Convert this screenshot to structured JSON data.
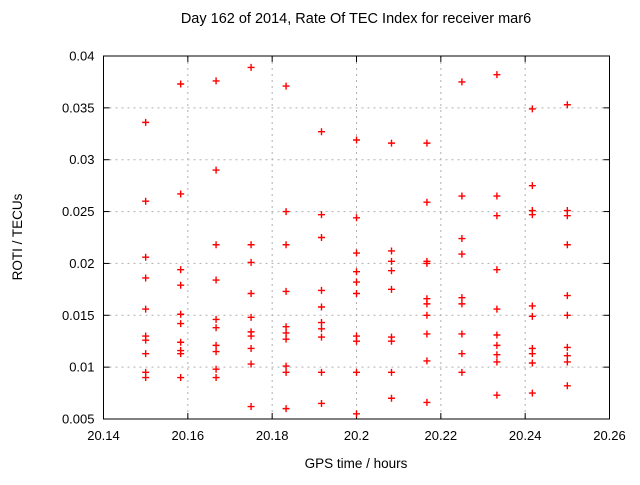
{
  "chart_data": {
    "type": "scatter",
    "title": "Day 162 of 2014, Rate Of TEC Index for receiver mar6",
    "xlabel": "GPS time / hours",
    "ylabel": "ROTI / TECUs",
    "xlim": [
      20.14,
      20.26
    ],
    "ylim": [
      0.005,
      0.04
    ],
    "grid": true,
    "legend_position": "none",
    "background": "#ffffff",
    "frame_color": "#000000",
    "grid_color": "#b0b0b0",
    "xticks": {
      "values": [
        20.14,
        20.16,
        20.18,
        20.2,
        20.22,
        20.24,
        20.26
      ],
      "labels": [
        "20.14",
        "20.16",
        "20.18",
        "20.2",
        "20.22",
        "20.24",
        "20.26"
      ]
    },
    "yticks": {
      "values": [
        0.005,
        0.01,
        0.015,
        0.02,
        0.025,
        0.03,
        0.035,
        0.04
      ],
      "labels": [
        "0.005",
        "0.01",
        "0.015",
        "0.02",
        "0.025",
        "0.03",
        "0.035",
        "0.04"
      ]
    },
    "marker": {
      "symbol": "plus",
      "color": "#ff0000",
      "size": 7
    },
    "series": [
      {
        "name": "ROTI",
        "points": [
          [
            20.15,
            0.0336
          ],
          [
            20.15,
            0.026
          ],
          [
            20.15,
            0.0206
          ],
          [
            20.15,
            0.0186
          ],
          [
            20.15,
            0.0156
          ],
          [
            20.15,
            0.013
          ],
          [
            20.15,
            0.0126
          ],
          [
            20.15,
            0.0113
          ],
          [
            20.15,
            0.0095
          ],
          [
            20.15,
            0.009
          ],
          [
            20.1583,
            0.0373
          ],
          [
            20.1583,
            0.0267
          ],
          [
            20.1583,
            0.0194
          ],
          [
            20.1583,
            0.0179
          ],
          [
            20.1583,
            0.0151
          ],
          [
            20.1583,
            0.0142
          ],
          [
            20.1583,
            0.0124
          ],
          [
            20.1583,
            0.0116
          ],
          [
            20.1583,
            0.0113
          ],
          [
            20.1583,
            0.009
          ],
          [
            20.1667,
            0.0376
          ],
          [
            20.1667,
            0.029
          ],
          [
            20.1667,
            0.0218
          ],
          [
            20.1667,
            0.0184
          ],
          [
            20.1667,
            0.0146
          ],
          [
            20.1667,
            0.0138
          ],
          [
            20.1667,
            0.0121
          ],
          [
            20.1667,
            0.0115
          ],
          [
            20.1667,
            0.0098
          ],
          [
            20.1667,
            0.009
          ],
          [
            20.175,
            0.0389
          ],
          [
            20.175,
            0.0218
          ],
          [
            20.175,
            0.0201
          ],
          [
            20.175,
            0.0171
          ],
          [
            20.175,
            0.0148
          ],
          [
            20.175,
            0.0134
          ],
          [
            20.175,
            0.013
          ],
          [
            20.175,
            0.0118
          ],
          [
            20.175,
            0.0103
          ],
          [
            20.175,
            0.0062
          ],
          [
            20.1833,
            0.0371
          ],
          [
            20.1833,
            0.025
          ],
          [
            20.1833,
            0.0218
          ],
          [
            20.1833,
            0.0173
          ],
          [
            20.1833,
            0.0139
          ],
          [
            20.1833,
            0.0133
          ],
          [
            20.1833,
            0.0127
          ],
          [
            20.1833,
            0.0101
          ],
          [
            20.1833,
            0.0095
          ],
          [
            20.1833,
            0.006
          ],
          [
            20.1917,
            0.0327
          ],
          [
            20.1917,
            0.0247
          ],
          [
            20.1917,
            0.0225
          ],
          [
            20.1917,
            0.0174
          ],
          [
            20.1917,
            0.0158
          ],
          [
            20.1917,
            0.0143
          ],
          [
            20.1917,
            0.0137
          ],
          [
            20.1917,
            0.0129
          ],
          [
            20.1917,
            0.0095
          ],
          [
            20.1917,
            0.0065
          ],
          [
            20.2,
            0.0319
          ],
          [
            20.2,
            0.0244
          ],
          [
            20.2,
            0.021
          ],
          [
            20.2,
            0.0192
          ],
          [
            20.2,
            0.0182
          ],
          [
            20.2,
            0.0171
          ],
          [
            20.2,
            0.013
          ],
          [
            20.2,
            0.0125
          ],
          [
            20.2,
            0.0095
          ],
          [
            20.2,
            0.0055
          ],
          [
            20.2083,
            0.0316
          ],
          [
            20.2083,
            0.0212
          ],
          [
            20.2083,
            0.0202
          ],
          [
            20.2083,
            0.0193
          ],
          [
            20.2083,
            0.0175
          ],
          [
            20.2083,
            0.0129
          ],
          [
            20.2083,
            0.0125
          ],
          [
            20.2083,
            0.0095
          ],
          [
            20.2083,
            0.007
          ],
          [
            20.2167,
            0.0316
          ],
          [
            20.2167,
            0.0259
          ],
          [
            20.2167,
            0.0202
          ],
          [
            20.2167,
            0.02
          ],
          [
            20.2167,
            0.0166
          ],
          [
            20.2167,
            0.0161
          ],
          [
            20.2167,
            0.015
          ],
          [
            20.2167,
            0.0132
          ],
          [
            20.2167,
            0.0106
          ],
          [
            20.2167,
            0.0066
          ],
          [
            20.225,
            0.0375
          ],
          [
            20.225,
            0.0265
          ],
          [
            20.225,
            0.0224
          ],
          [
            20.225,
            0.0209
          ],
          [
            20.225,
            0.0167
          ],
          [
            20.225,
            0.0161
          ],
          [
            20.225,
            0.0132
          ],
          [
            20.225,
            0.0113
          ],
          [
            20.225,
            0.0095
          ],
          [
            20.2333,
            0.0382
          ],
          [
            20.2333,
            0.0265
          ],
          [
            20.2333,
            0.0246
          ],
          [
            20.2333,
            0.0194
          ],
          [
            20.2333,
            0.0156
          ],
          [
            20.2333,
            0.0131
          ],
          [
            20.2333,
            0.0121
          ],
          [
            20.2333,
            0.0112
          ],
          [
            20.2333,
            0.0105
          ],
          [
            20.2333,
            0.0073
          ],
          [
            20.2417,
            0.0349
          ],
          [
            20.2417,
            0.0275
          ],
          [
            20.2417,
            0.0251
          ],
          [
            20.2417,
            0.0247
          ],
          [
            20.2417,
            0.0159
          ],
          [
            20.2417,
            0.0149
          ],
          [
            20.2417,
            0.0118
          ],
          [
            20.2417,
            0.0113
          ],
          [
            20.2417,
            0.0104
          ],
          [
            20.2417,
            0.0075
          ],
          [
            20.25,
            0.0353
          ],
          [
            20.25,
            0.0251
          ],
          [
            20.25,
            0.0246
          ],
          [
            20.25,
            0.0218
          ],
          [
            20.25,
            0.0169
          ],
          [
            20.25,
            0.015
          ],
          [
            20.25,
            0.0119
          ],
          [
            20.25,
            0.0111
          ],
          [
            20.25,
            0.0105
          ],
          [
            20.25,
            0.0082
          ]
        ]
      }
    ]
  }
}
